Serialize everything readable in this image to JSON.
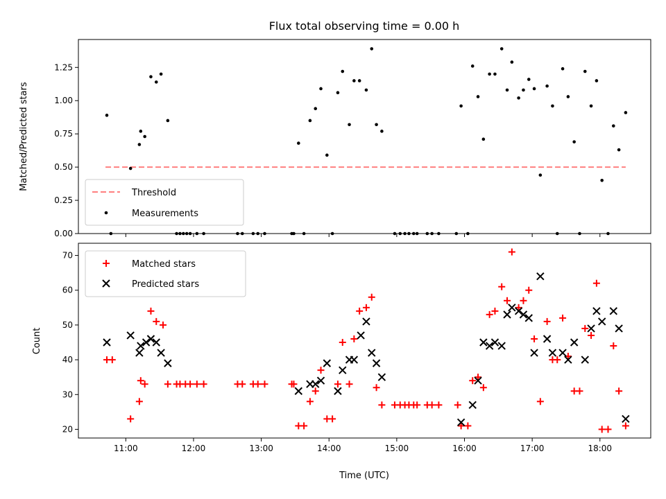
{
  "chart_data": [
    {
      "type": "scatter",
      "title": "Flux total observing time = 0.00 h",
      "xlabel": "",
      "ylabel": "Matched/Predicted stars",
      "ylim": [
        0,
        1.46
      ],
      "yticks": [
        0.0,
        0.25,
        0.5,
        0.75,
        1.0,
        1.25
      ],
      "ytick_labels": [
        "0.00",
        "0.25",
        "0.50",
        "0.75",
        "1.00",
        "1.25"
      ],
      "xlim": [
        10.3,
        18.75
      ],
      "xticks": [
        11,
        12,
        13,
        14,
        15,
        16,
        17,
        18
      ],
      "xtick_labels": [
        "",
        "",
        "",
        "",
        "",
        "",
        "",
        ""
      ],
      "legend_position": "lower-left",
      "series": [
        {
          "name": "Threshold",
          "kind": "line",
          "color": "#ff7f7f",
          "dash": true,
          "x": [
            10.7,
            18.38
          ],
          "y": [
            0.5,
            0.5
          ]
        },
        {
          "name": "Measurements",
          "kind": "dot",
          "color": "#000000",
          "x": [
            10.72,
            10.78,
            11.07,
            11.2,
            11.22,
            11.28,
            11.37,
            11.45,
            11.52,
            11.62,
            11.75,
            11.8,
            11.85,
            11.9,
            11.95,
            12.05,
            12.15,
            12.65,
            12.72,
            12.88,
            12.95,
            13.05,
            13.45,
            13.48,
            13.55,
            13.63,
            13.72,
            13.8,
            13.88,
            13.97,
            14.05,
            14.13,
            14.2,
            14.3,
            14.37,
            14.45,
            14.55,
            14.63,
            14.7,
            14.78,
            14.97,
            15.05,
            15.12,
            15.18,
            15.25,
            15.3,
            15.45,
            15.52,
            15.62,
            15.88,
            15.95,
            16.05,
            16.12,
            16.2,
            16.28,
            16.37,
            16.45,
            16.55,
            16.63,
            16.7,
            16.8,
            16.87,
            16.95,
            17.03,
            17.12,
            17.22,
            17.3,
            17.37,
            17.45,
            17.53,
            17.62,
            17.7,
            17.78,
            17.87,
            17.95,
            18.03,
            18.12,
            18.2,
            18.28,
            18.38
          ],
          "y": [
            0.89,
            0.0,
            0.49,
            0.67,
            0.77,
            0.73,
            1.18,
            1.14,
            1.2,
            0.85,
            0.0,
            0.0,
            0.0,
            0.0,
            0.0,
            0.0,
            0.0,
            0.0,
            0.0,
            0.0,
            0.0,
            0.0,
            0.0,
            0.0,
            0.68,
            0.0,
            0.85,
            0.94,
            1.09,
            0.59,
            0.0,
            1.06,
            1.22,
            0.82,
            1.15,
            1.15,
            1.08,
            1.39,
            0.82,
            0.77,
            0.0,
            0.0,
            0.0,
            0.0,
            0.0,
            0.0,
            0.0,
            0.0,
            0.0,
            0.0,
            0.96,
            0.0,
            1.26,
            1.03,
            0.71,
            1.2,
            1.2,
            1.39,
            1.08,
            1.29,
            1.02,
            1.08,
            1.16,
            1.09,
            0.44,
            1.11,
            0.96,
            0.0,
            1.24,
            1.03,
            0.69,
            0.0,
            1.22,
            0.96,
            1.15,
            0.4,
            0.0,
            0.81,
            0.63,
            0.91
          ]
        }
      ]
    },
    {
      "type": "scatter",
      "title": "",
      "xlabel": "Time (UTC)",
      "ylabel": "Count",
      "ylim": [
        17.5,
        73.5
      ],
      "yticks": [
        20,
        30,
        40,
        50,
        60,
        70
      ],
      "ytick_labels": [
        "20",
        "30",
        "40",
        "50",
        "60",
        "70"
      ],
      "xlim": [
        10.3,
        18.75
      ],
      "xticks": [
        11,
        12,
        13,
        14,
        15,
        16,
        17,
        18
      ],
      "xtick_labels": [
        "11:00",
        "12:00",
        "13:00",
        "14:00",
        "15:00",
        "16:00",
        "17:00",
        "18:00"
      ],
      "legend_position": "upper-left",
      "series": [
        {
          "name": "Matched stars",
          "kind": "plus",
          "color": "#ff0000",
          "x": [
            10.72,
            10.8,
            11.07,
            11.2,
            11.22,
            11.28,
            11.37,
            11.45,
            11.55,
            11.62,
            11.75,
            11.8,
            11.88,
            11.95,
            12.05,
            12.15,
            12.65,
            12.72,
            12.88,
            12.95,
            13.05,
            13.45,
            13.48,
            13.55,
            13.63,
            13.72,
            13.8,
            13.88,
            13.97,
            14.05,
            14.13,
            14.2,
            14.3,
            14.37,
            14.45,
            14.55,
            14.63,
            14.7,
            14.78,
            14.97,
            15.05,
            15.12,
            15.18,
            15.25,
            15.3,
            15.45,
            15.52,
            15.62,
            15.9,
            15.95,
            16.05,
            16.12,
            16.2,
            16.28,
            16.37,
            16.45,
            16.55,
            16.63,
            16.7,
            16.8,
            16.87,
            16.95,
            17.03,
            17.12,
            17.22,
            17.3,
            17.37,
            17.45,
            17.53,
            17.62,
            17.7,
            17.78,
            17.87,
            17.95,
            18.03,
            18.12,
            18.2,
            18.28,
            18.38
          ],
          "y": [
            40,
            40,
            23,
            28,
            34,
            33,
            54,
            51,
            50,
            33,
            33,
            33,
            33,
            33,
            33,
            33,
            33,
            33,
            33,
            33,
            33,
            33,
            33,
            21,
            21,
            28,
            31,
            37,
            23,
            23,
            33,
            45,
            33,
            46,
            54,
            55,
            58,
            32,
            27,
            27,
            27,
            27,
            27,
            27,
            27,
            27,
            27,
            27,
            27,
            21,
            21,
            34,
            35,
            32,
            53,
            54,
            61,
            57,
            71,
            55,
            57,
            60,
            46,
            28,
            51,
            40,
            40,
            52,
            41,
            31,
            31,
            49,
            47,
            62,
            20,
            20,
            44,
            31,
            21
          ]
        },
        {
          "name": "Predicted stars",
          "kind": "cross",
          "color": "#000000",
          "x": [
            10.72,
            11.07,
            11.2,
            11.22,
            11.3,
            11.37,
            11.45,
            11.52,
            11.62,
            13.55,
            13.72,
            13.8,
            13.88,
            13.97,
            14.13,
            14.2,
            14.3,
            14.37,
            14.47,
            14.55,
            14.63,
            14.7,
            14.78,
            15.95,
            16.12,
            16.2,
            16.28,
            16.37,
            16.45,
            16.55,
            16.63,
            16.7,
            16.8,
            16.87,
            16.95,
            17.03,
            17.12,
            17.22,
            17.3,
            17.45,
            17.53,
            17.62,
            17.78,
            17.87,
            17.95,
            18.03,
            18.2,
            18.28,
            18.38
          ],
          "y": [
            45,
            47,
            42,
            44,
            45,
            46,
            45,
            42,
            39,
            31,
            33,
            33,
            34,
            39,
            31,
            37,
            40,
            40,
            47,
            51,
            42,
            39,
            35,
            22,
            27,
            34,
            45,
            44,
            45,
            44,
            53,
            55,
            54,
            53,
            52,
            42,
            64,
            46,
            42,
            42,
            40,
            45,
            40,
            49,
            54,
            51,
            54,
            49,
            23
          ]
        }
      ]
    }
  ]
}
